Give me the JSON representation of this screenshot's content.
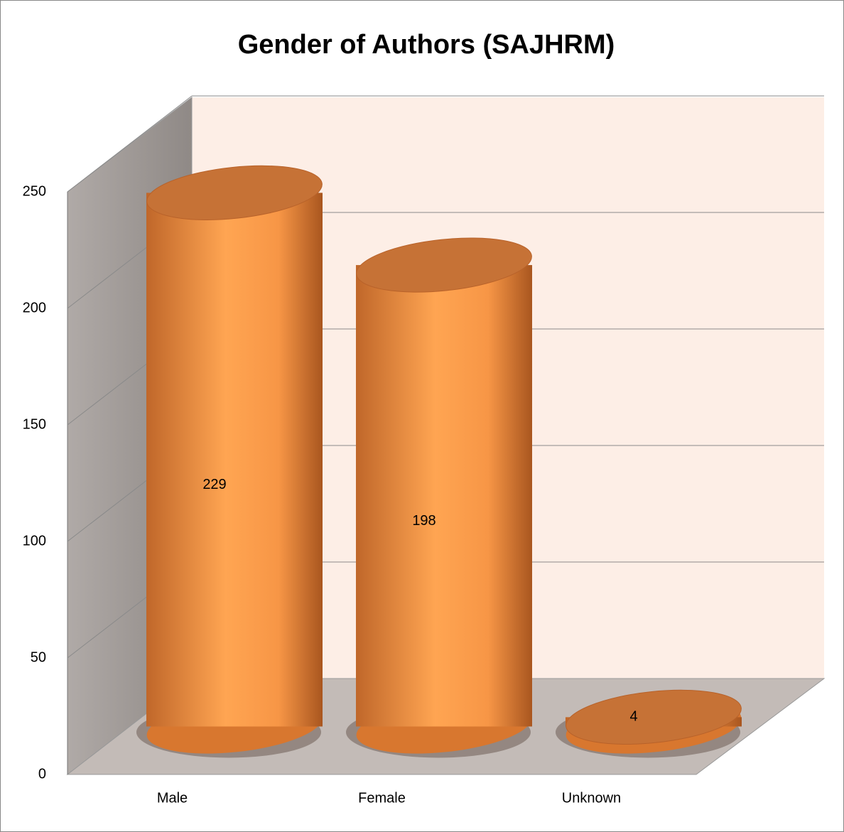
{
  "chart_data": {
    "type": "bar3d",
    "title": "Gender of Authors (SAJHRM)",
    "categories": [
      "Male",
      "Female",
      "Unknown"
    ],
    "values": [
      229,
      198,
      4
    ],
    "color": "#f79646",
    "ylim": [
      0,
      250
    ],
    "yticks": [
      0,
      50,
      100,
      150,
      200,
      250
    ],
    "grid": true
  }
}
